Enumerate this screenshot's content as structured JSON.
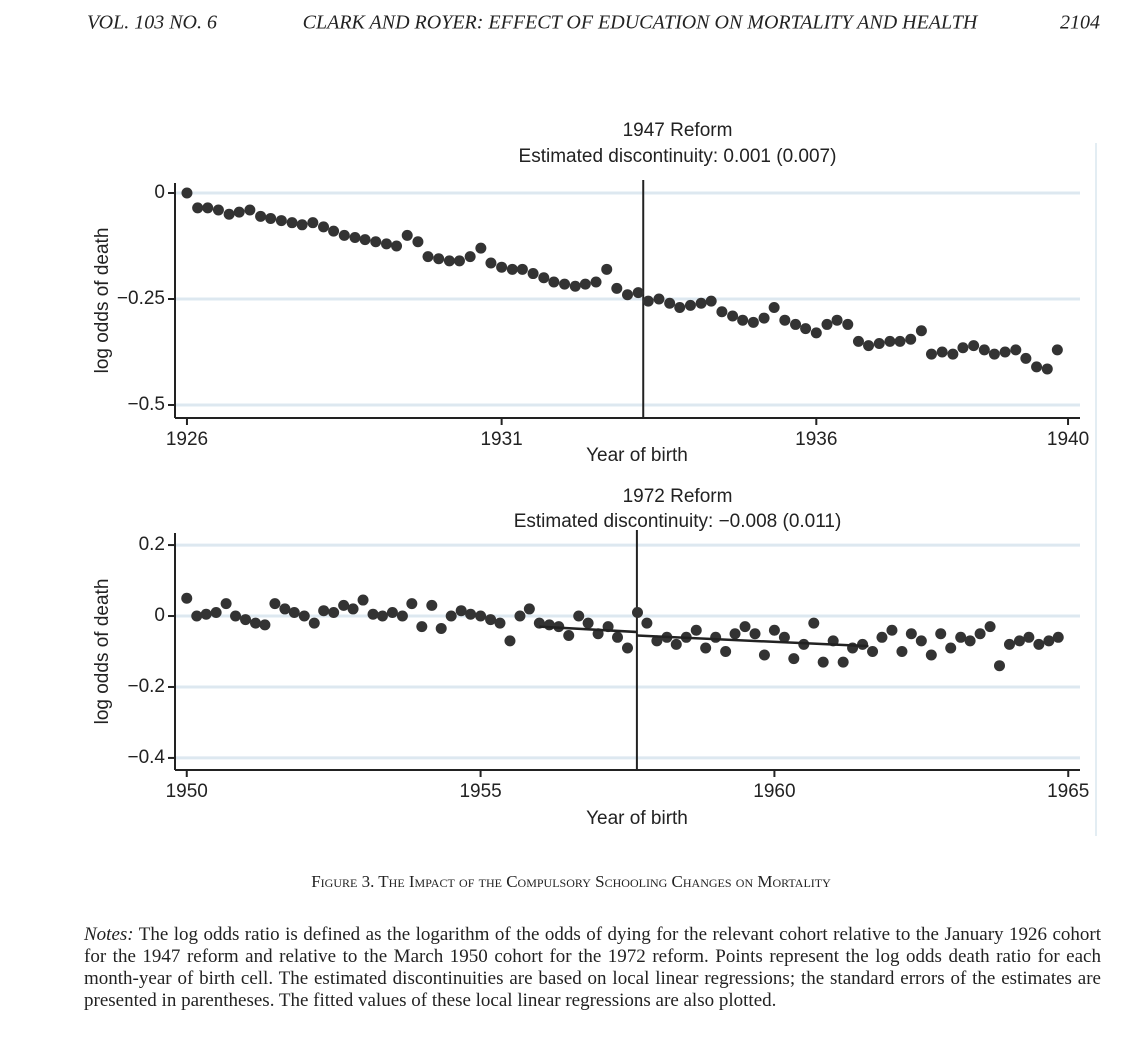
{
  "header": {
    "volume": "VOL. 103 NO. 6",
    "title": "CLARK AND ROYER: EFFECT OF EDUCATION ON MORTALITY AND HEALTH",
    "page": "2104"
  },
  "chart_data": [
    {
      "type": "scatter",
      "title": "1947 Reform",
      "subtitle": "Estimated discontinuity: 0.001 (0.007)",
      "x_label": "Year of birth",
      "y_label": "log odds of death",
      "color": "#333333",
      "grid": true,
      "cutoff": 1933.25,
      "xlim": [
        1925.81,
        1940.19
      ],
      "ylim": [
        -0.5307,
        0.0236
      ],
      "xticks": [
        1926,
        1931,
        1936,
        1940
      ],
      "yticks": [
        0,
        {
          "value": -0.25,
          "label": "−0.25"
        },
        {
          "value": -0.5,
          "label": "−0.5"
        }
      ],
      "x": [
        1926.0,
        1926.17,
        1926.33,
        1926.5,
        1926.67,
        1926.83,
        1927.0,
        1927.17,
        1927.33,
        1927.5,
        1927.67,
        1927.83,
        1928.0,
        1928.17,
        1928.33,
        1928.5,
        1928.67,
        1928.83,
        1929.0,
        1929.17,
        1929.33,
        1929.5,
        1929.67,
        1929.83,
        1930.0,
        1930.17,
        1930.33,
        1930.5,
        1930.67,
        1930.83,
        1931.0,
        1931.17,
        1931.33,
        1931.5,
        1931.67,
        1931.83,
        1932.0,
        1932.17,
        1932.33,
        1932.5,
        1932.67,
        1932.83,
        1933.0,
        1933.17,
        1933.33,
        1933.5,
        1933.67,
        1933.83,
        1934.0,
        1934.17,
        1934.33,
        1934.5,
        1934.67,
        1934.83,
        1935.0,
        1935.17,
        1935.33,
        1935.5,
        1935.67,
        1935.83,
        1936.0,
        1936.17,
        1936.33,
        1936.5,
        1936.67,
        1936.83,
        1937.0,
        1937.17,
        1937.33,
        1937.5,
        1937.67,
        1937.83,
        1938.0,
        1938.17,
        1938.33,
        1938.5,
        1938.67,
        1938.83,
        1939.0,
        1939.17,
        1939.33,
        1939.5,
        1939.67,
        1939.83
      ],
      "values": [
        0,
        -0.035,
        -0.035,
        -0.04,
        -0.05,
        -0.045,
        -0.04,
        -0.055,
        -0.06,
        -0.065,
        -0.07,
        -0.075,
        -0.07,
        -0.08,
        -0.09,
        -0.1,
        -0.105,
        -0.11,
        -0.115,
        -0.12,
        -0.125,
        -0.1,
        -0.115,
        -0.15,
        -0.155,
        -0.16,
        -0.16,
        -0.15,
        -0.13,
        -0.165,
        -0.175,
        -0.18,
        -0.18,
        -0.19,
        -0.2,
        -0.21,
        -0.215,
        -0.22,
        -0.215,
        -0.21,
        -0.18,
        -0.225,
        -0.24,
        -0.235,
        -0.255,
        -0.25,
        -0.26,
        -0.27,
        -0.265,
        -0.26,
        -0.255,
        -0.28,
        -0.29,
        -0.3,
        -0.305,
        -0.295,
        -0.27,
        -0.3,
        -0.31,
        -0.32,
        -0.33,
        -0.31,
        -0.3,
        -0.31,
        -0.35,
        -0.36,
        -0.355,
        -0.35,
        -0.35,
        -0.345,
        -0.325,
        -0.38,
        -0.375,
        -0.38,
        -0.365,
        -0.36,
        -0.37,
        -0.38,
        -0.375,
        -0.37,
        -0.39,
        -0.41,
        -0.415,
        -0.37
      ]
    },
    {
      "type": "scatter",
      "title": "1972 Reform",
      "subtitle": "Estimated discontinuity: −0.008 (0.011)",
      "x_label": "Year of birth",
      "y_label": "log odds of death",
      "color": "#333333",
      "grid": true,
      "cutoff": 1957.66,
      "xlim": [
        1949.8,
        1965.2
      ],
      "ylim": [
        -0.434,
        0.234
      ],
      "xticks": [
        1950,
        1955,
        1960,
        1965
      ],
      "yticks": [
        0.2,
        0,
        {
          "value": -0.2,
          "label": "−0.2"
        },
        {
          "value": -0.4,
          "label": "−0.4"
        }
      ],
      "x": [
        1950.0,
        1950.17,
        1950.33,
        1950.5,
        1950.67,
        1950.83,
        1951.0,
        1951.17,
        1951.33,
        1951.5,
        1951.67,
        1951.83,
        1952.0,
        1952.17,
        1952.33,
        1952.5,
        1952.67,
        1952.83,
        1953.0,
        1953.17,
        1953.33,
        1953.5,
        1953.67,
        1953.83,
        1954.0,
        1954.17,
        1954.33,
        1954.5,
        1954.67,
        1954.83,
        1955.0,
        1955.17,
        1955.33,
        1955.5,
        1955.67,
        1955.83,
        1956.0,
        1956.17,
        1956.33,
        1956.5,
        1956.67,
        1956.83,
        1957.0,
        1957.17,
        1957.33,
        1957.5,
        1957.67,
        1957.83,
        1958.0,
        1958.17,
        1958.33,
        1958.5,
        1958.67,
        1958.83,
        1959.0,
        1959.17,
        1959.33,
        1959.5,
        1959.67,
        1959.83,
        1960.0,
        1960.17,
        1960.33,
        1960.5,
        1960.67,
        1960.83,
        1961.0,
        1961.17,
        1961.33,
        1961.5,
        1961.67,
        1961.83,
        1962.0,
        1962.17,
        1962.33,
        1962.5,
        1962.67,
        1962.83,
        1963.0,
        1963.17,
        1963.33,
        1963.5,
        1963.67,
        1963.83,
        1964.0,
        1964.17,
        1964.33,
        1964.5,
        1964.67,
        1964.83
      ],
      "values": [
        0.05,
        0,
        0.005,
        0.01,
        0.035,
        0,
        -0.01,
        -0.02,
        -0.025,
        0.035,
        0.02,
        0.01,
        0,
        -0.02,
        0.015,
        0.01,
        0.03,
        0.02,
        0.045,
        0.005,
        0,
        0.01,
        0,
        0.035,
        -0.03,
        0.03,
        -0.035,
        0,
        0.015,
        0.005,
        0,
        -0.01,
        -0.02,
        -0.07,
        0,
        0.02,
        -0.02,
        -0.025,
        -0.03,
        -0.055,
        0,
        -0.02,
        -0.05,
        -0.03,
        -0.06,
        -0.09,
        0.01,
        -0.02,
        -0.07,
        -0.06,
        -0.08,
        -0.06,
        -0.04,
        -0.09,
        -0.06,
        -0.1,
        -0.05,
        -0.03,
        -0.05,
        -0.11,
        -0.04,
        -0.06,
        -0.12,
        -0.08,
        -0.02,
        -0.13,
        -0.07,
        -0.13,
        -0.09,
        -0.08,
        -0.1,
        -0.06,
        -0.04,
        -0.1,
        -0.05,
        -0.07,
        -0.11,
        -0.05,
        -0.09,
        -0.06,
        -0.07,
        -0.05,
        -0.03,
        -0.14,
        -0.08,
        -0.07,
        -0.06,
        -0.08,
        -0.07,
        -0.06
      ],
      "fit": [
        {
          "x": [
            1956.0,
            1957.66
          ],
          "values": [
            -0.03,
            -0.045
          ]
        },
        {
          "x": [
            1957.66,
            1961.6
          ],
          "values": [
            -0.055,
            -0.085
          ]
        }
      ]
    }
  ],
  "caption": "Figure 3. The Impact of the Compulsory Schooling Changes on Mortality",
  "notes": {
    "lead": "Notes:",
    "text": "The log odds ratio is defined as the logarithm of the odds of dying for the relevant cohort relative to the January 1926 cohort for the 1947 reform and relative to the March 1950 cohort for the 1972 reform. Points represent the log odds death ratio for each month-year of birth cell. The estimated discontinuities are based on local linear regressions; the standard errors of the estimates are presented in parentheses. The fitted values of these local linear regressions are also plotted."
  }
}
